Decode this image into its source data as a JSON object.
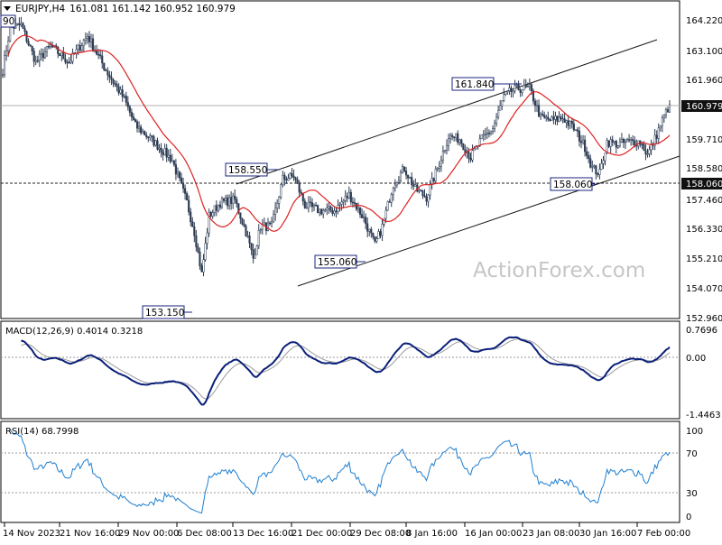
{
  "header": {
    "symbol": "EURJPY,H4",
    "ohlc": "161.081 161.142 160.952 160.979",
    "cut_label": "90"
  },
  "watermark": "ActionForex.com",
  "colors": {
    "candle": "#2b3a52",
    "ma": "#dd2222",
    "channel": "#1a1a1a",
    "macd": "#0a1f7a",
    "signal": "#9a9a9a",
    "rsi": "#1f7fd0",
    "label_box": "#1a237e",
    "price_tag_bg": "#111111"
  },
  "chart_data": [
    {
      "type": "candlestick",
      "pane": "price",
      "ylim": [
        152.96,
        164.23
      ],
      "yticks": [
        "164.220",
        "163.100",
        "161.960",
        "160.979",
        "159.710",
        "158.580",
        "158.060",
        "157.460",
        "156.330",
        "155.210",
        "154.070",
        "152.960"
      ],
      "xticks": [
        "14 Nov 2023",
        "21 Nov 16:00",
        "29 Nov 00:00",
        "6 Dec 08:00",
        "13 Dec 16:00",
        "21 Dec 00:00",
        "29 Dec 08:00",
        "8 Jan 16:00",
        "16 Jan 00:00",
        "23 Jan 08:00",
        "30 Jan 16:00",
        "7 Feb 00:00"
      ],
      "last_price": "160.979",
      "level_line": "158.060",
      "annotations": [
        "161.840",
        "158.550",
        "158.060",
        "155.060",
        "153.150"
      ],
      "closes_keypoints": [
        [
          0,
          162.3
        ],
        [
          4,
          163.9
        ],
        [
          10,
          164.0
        ],
        [
          18,
          162.6
        ],
        [
          26,
          163.2
        ],
        [
          36,
          162.6
        ],
        [
          46,
          163.6
        ],
        [
          56,
          162.3
        ],
        [
          66,
          161.2
        ],
        [
          72,
          160.2
        ],
        [
          82,
          159.6
        ],
        [
          92,
          158.9
        ],
        [
          100,
          157.3
        ],
        [
          104,
          156.2
        ],
        [
          108,
          154.6
        ],
        [
          112,
          156.8
        ],
        [
          118,
          157.3
        ],
        [
          126,
          157.4
        ],
        [
          132,
          156.2
        ],
        [
          136,
          155.2
        ],
        [
          140,
          156.4
        ],
        [
          146,
          156.4
        ],
        [
          152,
          158.2
        ],
        [
          158,
          158.3
        ],
        [
          164,
          157.2
        ],
        [
          172,
          157.0
        ],
        [
          180,
          157.0
        ],
        [
          188,
          157.6
        ],
        [
          196,
          156.7
        ],
        [
          202,
          155.7
        ],
        [
          206,
          156.4
        ],
        [
          212,
          158.0
        ],
        [
          218,
          158.6
        ],
        [
          224,
          157.8
        ],
        [
          230,
          157.5
        ],
        [
          236,
          158.6
        ],
        [
          242,
          159.8
        ],
        [
          248,
          159.7
        ],
        [
          254,
          159.0
        ],
        [
          260,
          159.7
        ],
        [
          266,
          160.1
        ],
        [
          272,
          161.3
        ],
        [
          276,
          161.5
        ],
        [
          280,
          161.6
        ],
        [
          286,
          161.6
        ],
        [
          292,
          160.5
        ],
        [
          298,
          160.4
        ],
        [
          304,
          160.5
        ],
        [
          310,
          160.1
        ],
        [
          316,
          159.4
        ],
        [
          320,
          158.6
        ],
        [
          324,
          158.4
        ],
        [
          328,
          159.6
        ],
        [
          334,
          159.5
        ],
        [
          340,
          159.6
        ],
        [
          346,
          159.6
        ],
        [
          350,
          159.1
        ],
        [
          354,
          159.7
        ],
        [
          358,
          160.4
        ],
        [
          362,
          161.0
        ]
      ]
    },
    {
      "type": "line",
      "pane": "macd",
      "title": "MACD(12,26,9) 0.4014 0.3218",
      "yticks": [
        "0.7696",
        "0.00",
        "-1.4463"
      ],
      "ylim": [
        -1.5,
        0.85
      ]
    },
    {
      "type": "line",
      "pane": "rsi",
      "title": "RSI(14) 68.7998",
      "yticks": [
        "100",
        "70",
        "30",
        "0"
      ],
      "ylim": [
        0,
        100
      ]
    }
  ]
}
